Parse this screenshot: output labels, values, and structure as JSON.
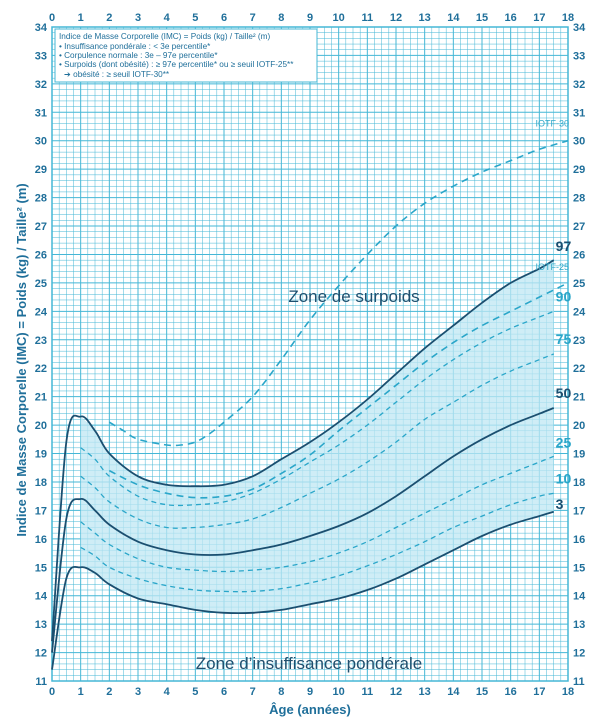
{
  "chart_data": {
    "type": "line",
    "title": "",
    "xlabel": "Âge (années)",
    "ylabel": "Indice de Masse Corporelle (IMC) = Poids (kg) / Taille² (m)",
    "xlim": [
      0,
      18
    ],
    "ylim": [
      11,
      34
    ],
    "grid": true,
    "x_ticks": [
      "0",
      "1",
      "2",
      "3",
      "4",
      "5",
      "6",
      "7",
      "8",
      "9",
      "10",
      "11",
      "12",
      "13",
      "14",
      "15",
      "16",
      "17",
      "18"
    ],
    "y_ticks": [
      "11",
      "12",
      "13",
      "14",
      "15",
      "16",
      "17",
      "18",
      "19",
      "20",
      "21",
      "22",
      "23",
      "24",
      "25",
      "26",
      "27",
      "28",
      "29",
      "30",
      "31",
      "32",
      "33",
      "34"
    ],
    "legend": {
      "position": "top-left",
      "lines": [
        "Indice de Masse Corporelle (IMC) = Poids (kg) / Taille² (m)",
        "• Insuffisance pondérale : < 3e percentile*",
        "• Corpulence normale : 3e – 97e percentile*",
        "• Surpoids (dont obésité) : ≥ 97e percentile* ou ≥ seuil IOTF-25**",
        "➔ obésité : ≥ seuil IOTF-30**"
      ]
    },
    "annotations": {
      "overweight_zone": "Zone de surpoids",
      "underweight_zone": "Zone d’insuffisance pondérale"
    },
    "series": [
      {
        "name": "97",
        "style": "solid",
        "x": [
          0,
          0.5,
          1,
          1.5,
          2,
          3,
          4,
          5,
          6,
          7,
          8,
          9,
          10,
          11,
          12,
          13,
          14,
          15,
          16,
          17,
          17.5
        ],
        "y": [
          12.4,
          19.4,
          20.3,
          19.8,
          19.0,
          18.2,
          17.9,
          17.85,
          17.9,
          18.2,
          18.8,
          19.4,
          20.1,
          20.9,
          21.8,
          22.7,
          23.5,
          24.3,
          25.0,
          25.5,
          25.8
        ]
      },
      {
        "name": "90",
        "style": "dashed",
        "x": [
          1,
          1.5,
          2,
          3,
          4,
          5,
          6,
          7,
          8,
          9,
          10,
          11,
          12,
          13,
          14,
          15,
          16,
          17,
          17.5
        ],
        "y": [
          19.2,
          18.8,
          18.2,
          17.5,
          17.2,
          17.2,
          17.3,
          17.6,
          18.1,
          18.7,
          19.3,
          20.0,
          20.8,
          21.6,
          22.3,
          22.9,
          23.4,
          23.8,
          24.0
        ]
      },
      {
        "name": "75",
        "style": "dashed",
        "x": [
          1,
          1.5,
          2,
          3,
          4,
          5,
          6,
          7,
          8,
          9,
          10,
          11,
          12,
          13,
          14,
          15,
          16,
          17,
          17.5
        ],
        "y": [
          18.2,
          17.8,
          17.3,
          16.7,
          16.4,
          16.4,
          16.5,
          16.7,
          17.1,
          17.6,
          18.1,
          18.7,
          19.4,
          20.2,
          20.8,
          21.4,
          21.9,
          22.3,
          22.5
        ]
      },
      {
        "name": "50",
        "style": "solid",
        "x": [
          0,
          0.5,
          1,
          1.5,
          2,
          3,
          4,
          5,
          6,
          7,
          8,
          9,
          10,
          11,
          12,
          13,
          14,
          15,
          16,
          17,
          17.5
        ],
        "y": [
          12.0,
          16.7,
          17.4,
          17.0,
          16.5,
          15.9,
          15.6,
          15.45,
          15.45,
          15.6,
          15.8,
          16.1,
          16.45,
          16.9,
          17.5,
          18.2,
          18.9,
          19.5,
          20.0,
          20.4,
          20.6
        ]
      },
      {
        "name": "25",
        "style": "dashed",
        "x": [
          1,
          1.5,
          2,
          3,
          4,
          5,
          6,
          7,
          8,
          9,
          10,
          11,
          12,
          13,
          14,
          15,
          16,
          17,
          17.5
        ],
        "y": [
          16.6,
          16.2,
          15.8,
          15.3,
          15.0,
          14.9,
          14.85,
          14.9,
          15.0,
          15.2,
          15.5,
          15.9,
          16.4,
          16.9,
          17.4,
          17.9,
          18.3,
          18.7,
          18.9
        ]
      },
      {
        "name": "10",
        "style": "dashed",
        "x": [
          1,
          1.5,
          2,
          3,
          4,
          5,
          6,
          7,
          8,
          9,
          10,
          11,
          12,
          13,
          14,
          15,
          16,
          17,
          17.5
        ],
        "y": [
          15.7,
          15.4,
          15.0,
          14.6,
          14.35,
          14.2,
          14.15,
          14.15,
          14.25,
          14.45,
          14.7,
          15.05,
          15.45,
          15.9,
          16.4,
          16.8,
          17.2,
          17.5,
          17.6
        ]
      },
      {
        "name": "3",
        "style": "solid",
        "x": [
          0,
          0.5,
          1,
          1.5,
          2,
          3,
          4,
          5,
          6,
          7,
          8,
          9,
          10,
          11,
          12,
          13,
          14,
          15,
          16,
          17,
          17.5
        ],
        "y": [
          11.4,
          14.6,
          15.0,
          14.8,
          14.4,
          13.9,
          13.7,
          13.5,
          13.4,
          13.4,
          13.5,
          13.7,
          13.9,
          14.2,
          14.6,
          15.1,
          15.6,
          16.1,
          16.5,
          16.8,
          16.95
        ]
      },
      {
        "name": "IOTF-30",
        "style": "dashed",
        "x": [
          2,
          2.5,
          3,
          4,
          4.5,
          5,
          5.5,
          6,
          7,
          8,
          9,
          10,
          11,
          12,
          13,
          14,
          15,
          16,
          17,
          18
        ],
        "y": [
          20.1,
          19.8,
          19.5,
          19.3,
          19.3,
          19.4,
          19.7,
          20.1,
          21.0,
          22.3,
          23.7,
          24.9,
          26.0,
          27.0,
          27.8,
          28.4,
          28.9,
          29.3,
          29.7,
          30.0
        ]
      },
      {
        "name": "IOTF-25",
        "style": "dashed",
        "x": [
          2,
          3,
          4,
          5,
          6,
          7,
          8,
          9,
          10,
          11,
          12,
          13,
          14,
          15,
          16,
          17,
          18
        ],
        "y": [
          18.4,
          17.9,
          17.6,
          17.45,
          17.5,
          17.75,
          18.3,
          18.95,
          19.8,
          20.6,
          21.4,
          22.2,
          22.9,
          23.5,
          24.0,
          24.5,
          25.0
        ]
      }
    ],
    "colors": {
      "curve": "#1b4f70",
      "dashed": "#2aa6c9",
      "grid": "#45b7d6",
      "band": "#bfe7f3",
      "axis_text": "#1f6f9a"
    }
  }
}
